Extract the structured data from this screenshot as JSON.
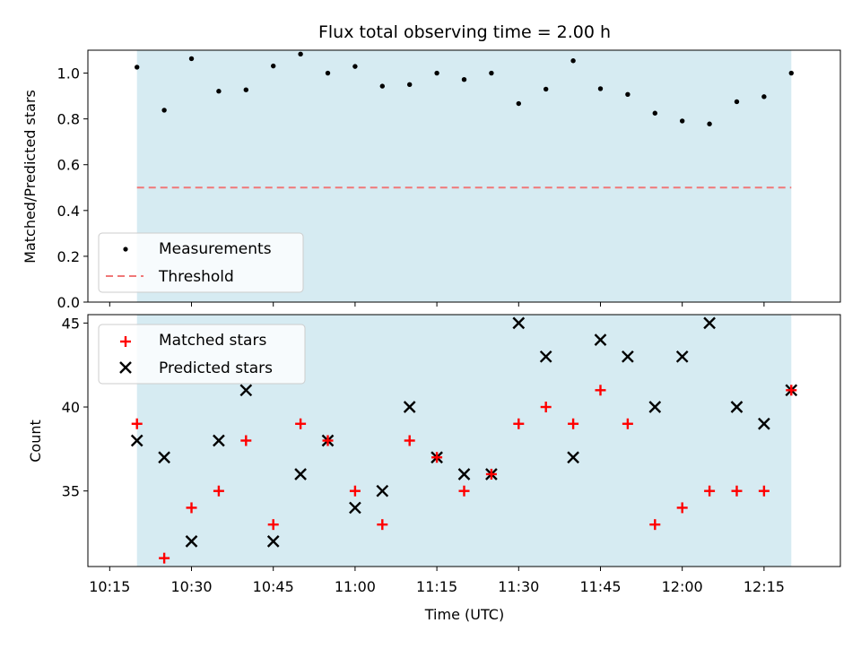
{
  "chart_data": [
    {
      "type": "scatter",
      "title": "Flux total observing time = 2.00 h",
      "ylabel": "Matched/Predicted stars",
      "xlabel": "",
      "ylim": [
        0.0,
        1.1
      ],
      "xlim": [
        "10:11",
        "12:29"
      ],
      "yticks": [
        "0.0",
        "0.2",
        "0.4",
        "0.6",
        "0.8",
        "1.0"
      ],
      "grid": false,
      "shaded_span": [
        "10:20",
        "12:20"
      ],
      "series": [
        {
          "name": "Measurements",
          "marker": "dot",
          "color": "#000000",
          "x": [
            "10:20",
            "10:25",
            "10:30",
            "10:35",
            "10:40",
            "10:45",
            "10:50",
            "10:55",
            "11:00",
            "11:05",
            "11:10",
            "11:15",
            "11:20",
            "11:25",
            "11:30",
            "11:35",
            "11:40",
            "11:45",
            "11:50",
            "11:55",
            "12:00",
            "12:05",
            "12:10",
            "12:15",
            "12:20"
          ],
          "values": [
            1.026,
            0.838,
            1.063,
            0.921,
            0.927,
            1.031,
            1.083,
            1.0,
            1.029,
            0.943,
            0.95,
            1.0,
            0.972,
            1.0,
            0.867,
            0.93,
            1.054,
            0.932,
            0.907,
            0.825,
            0.791,
            0.778,
            0.875,
            0.897,
            1.0
          ]
        },
        {
          "name": "Threshold",
          "style": "dashed",
          "color": "#f07878",
          "x": [
            "10:20",
            "12:20"
          ],
          "values": [
            0.5,
            0.5
          ]
        }
      ],
      "legend_position": "lower-left"
    },
    {
      "type": "scatter",
      "title": "",
      "ylabel": "Count",
      "xlabel": "Time (UTC)",
      "ylim": [
        30.5,
        45.5
      ],
      "xlim": [
        "10:11",
        "12:29"
      ],
      "yticks": [
        "35",
        "40",
        "45"
      ],
      "xticks": [
        "10:15",
        "10:30",
        "10:45",
        "11:00",
        "11:15",
        "11:30",
        "11:45",
        "12:00",
        "12:15"
      ],
      "grid": false,
      "shaded_span": [
        "10:20",
        "12:20"
      ],
      "x": [
        "10:20",
        "10:25",
        "10:30",
        "10:35",
        "10:40",
        "10:45",
        "10:50",
        "10:55",
        "11:00",
        "11:05",
        "11:10",
        "11:15",
        "11:20",
        "11:25",
        "11:30",
        "11:35",
        "11:40",
        "11:45",
        "11:50",
        "11:55",
        "12:00",
        "12:05",
        "12:10",
        "12:15",
        "12:20"
      ],
      "series": [
        {
          "name": "Matched stars",
          "marker": "plus",
          "color": "#ff0000",
          "values": [
            39,
            31,
            34,
            35,
            38,
            33,
            39,
            38,
            35,
            33,
            38,
            37,
            35,
            36,
            39,
            40,
            39,
            41,
            39,
            33,
            34,
            35,
            35,
            35,
            41
          ]
        },
        {
          "name": "Predicted stars",
          "marker": "x",
          "color": "#000000",
          "values": [
            38,
            37,
            32,
            38,
            41,
            32,
            36,
            38,
            34,
            35,
            40,
            37,
            36,
            36,
            45,
            43,
            37,
            44,
            43,
            40,
            43,
            45,
            40,
            39,
            41
          ]
        }
      ],
      "legend_position": "upper-left"
    }
  ],
  "colors": {
    "span_fill": "#add8e6",
    "threshold": "#f07878",
    "matched": "#ff0000",
    "predicted": "#000000",
    "measurements": "#000000"
  }
}
